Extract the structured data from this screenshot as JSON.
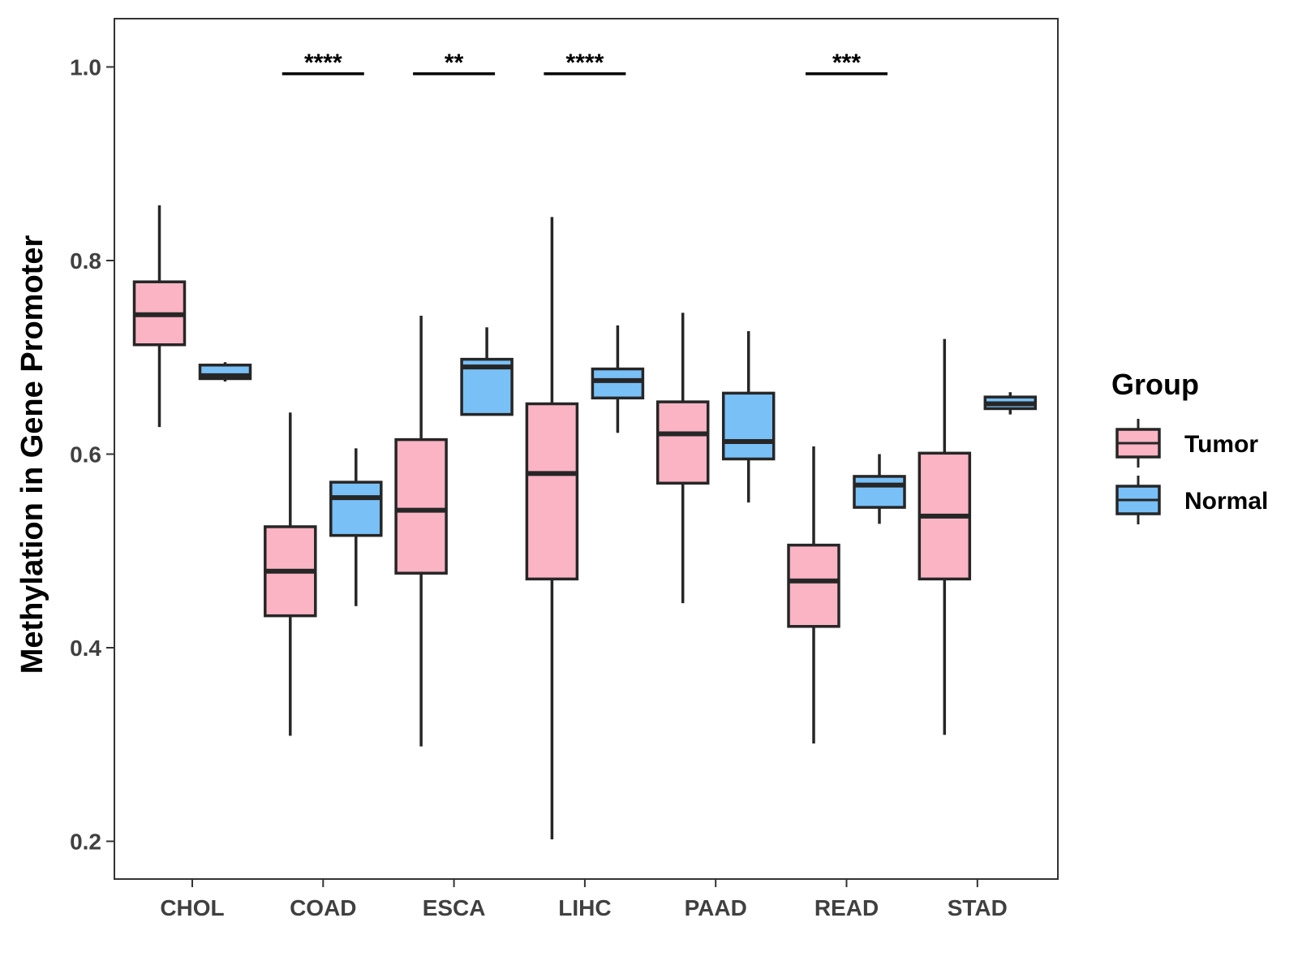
{
  "chart_data": {
    "type": "boxplot",
    "title": "",
    "xlabel": "",
    "ylabel": "Methylation in Gene Promoter",
    "ylim": [
      0.16,
      1.05
    ],
    "yticks": [
      0.2,
      0.4,
      0.6,
      0.8,
      1.0
    ],
    "ytick_labels": [
      "0.2",
      "0.4",
      "0.6",
      "0.8",
      "1.0"
    ],
    "grid": false,
    "legend": {
      "title": "Group",
      "position": "right",
      "entries": [
        {
          "name": "Tumor",
          "color": "#FBB4C4"
        },
        {
          "name": "Normal",
          "color": "#79C0F7"
        }
      ]
    },
    "categories": [
      "CHOL",
      "COAD",
      "ESCA",
      "LIHC",
      "PAAD",
      "READ",
      "STAD"
    ],
    "series": [
      {
        "name": "Tumor",
        "color": "#FBB4C4",
        "boxes": [
          {
            "min": 0.628,
            "q1": 0.713,
            "median": 0.744,
            "q3": 0.778,
            "max": 0.857
          },
          {
            "min": 0.309,
            "q1": 0.433,
            "median": 0.479,
            "q3": 0.525,
            "max": 0.643
          },
          {
            "min": 0.298,
            "q1": 0.477,
            "median": 0.542,
            "q3": 0.615,
            "max": 0.743
          },
          {
            "min": 0.202,
            "q1": 0.471,
            "median": 0.58,
            "q3": 0.652,
            "max": 0.845
          },
          {
            "min": 0.446,
            "q1": 0.57,
            "median": 0.621,
            "q3": 0.654,
            "max": 0.746
          },
          {
            "min": 0.301,
            "q1": 0.422,
            "median": 0.469,
            "q3": 0.506,
            "max": 0.608
          },
          {
            "min": 0.31,
            "q1": 0.471,
            "median": 0.536,
            "q3": 0.601,
            "max": 0.719
          }
        ]
      },
      {
        "name": "Normal",
        "color": "#79C0F7",
        "boxes": [
          {
            "min": 0.675,
            "q1": 0.678,
            "median": 0.681,
            "q3": 0.692,
            "max": 0.695
          },
          {
            "min": 0.443,
            "q1": 0.516,
            "median": 0.555,
            "q3": 0.571,
            "max": 0.606
          },
          {
            "min": 0.64,
            "q1": 0.641,
            "median": 0.69,
            "q3": 0.698,
            "max": 0.731
          },
          {
            "min": 0.622,
            "q1": 0.658,
            "median": 0.676,
            "q3": 0.688,
            "max": 0.733
          },
          {
            "min": 0.55,
            "q1": 0.595,
            "median": 0.613,
            "q3": 0.663,
            "max": 0.727
          },
          {
            "min": 0.528,
            "q1": 0.545,
            "median": 0.568,
            "q3": 0.577,
            "max": 0.6
          },
          {
            "min": 0.641,
            "q1": 0.647,
            "median": 0.652,
            "q3": 0.659,
            "max": 0.664
          }
        ]
      }
    ],
    "significance": [
      {
        "category": "COAD",
        "label": "****"
      },
      {
        "category": "ESCA",
        "label": "**"
      },
      {
        "category": "LIHC",
        "label": "****"
      },
      {
        "category": "READ",
        "label": "***"
      }
    ],
    "significance_level": 0.993
  }
}
